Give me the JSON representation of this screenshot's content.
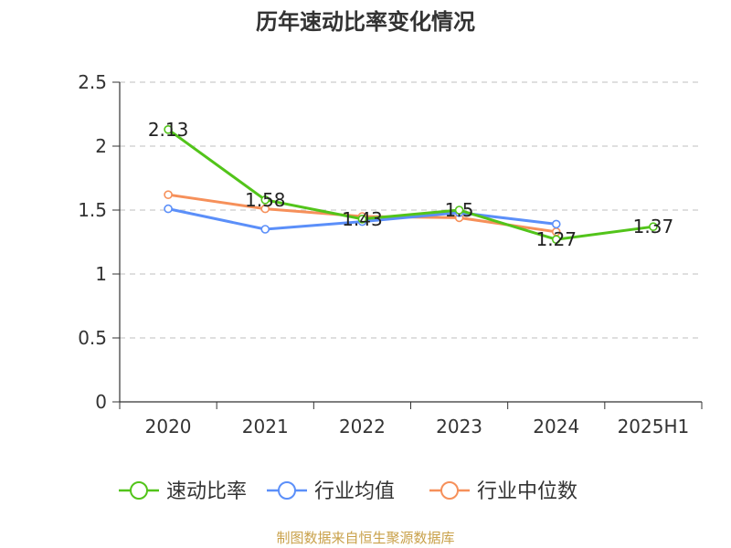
{
  "chart_data": {
    "type": "line",
    "title": "历年速动比率变化情况",
    "categories": [
      "2020",
      "2021",
      "2022",
      "2023",
      "2024",
      "2025H1"
    ],
    "ylim": [
      0,
      2.5
    ],
    "yticks": [
      "0",
      "0.5",
      "1",
      "1.5",
      "2",
      "2.5"
    ],
    "grid": true,
    "legend_position": "bottom",
    "series": [
      {
        "name": "速动比率",
        "color": "#52c41a",
        "values": [
          2.13,
          1.58,
          1.43,
          1.5,
          1.27,
          1.37
        ],
        "labels": [
          "2.13",
          "1.58",
          "1.43",
          "1.5",
          "1.27",
          "1.37"
        ]
      },
      {
        "name": "行业均值",
        "color": "#5b8ff9",
        "values": [
          1.51,
          1.35,
          1.41,
          1.48,
          1.39,
          null
        ]
      },
      {
        "name": "行业中位数",
        "color": "#f6905a",
        "values": [
          1.62,
          1.51,
          1.45,
          1.44,
          1.33,
          null
        ]
      }
    ],
    "source": "制图数据来自恒生聚源数据库"
  }
}
